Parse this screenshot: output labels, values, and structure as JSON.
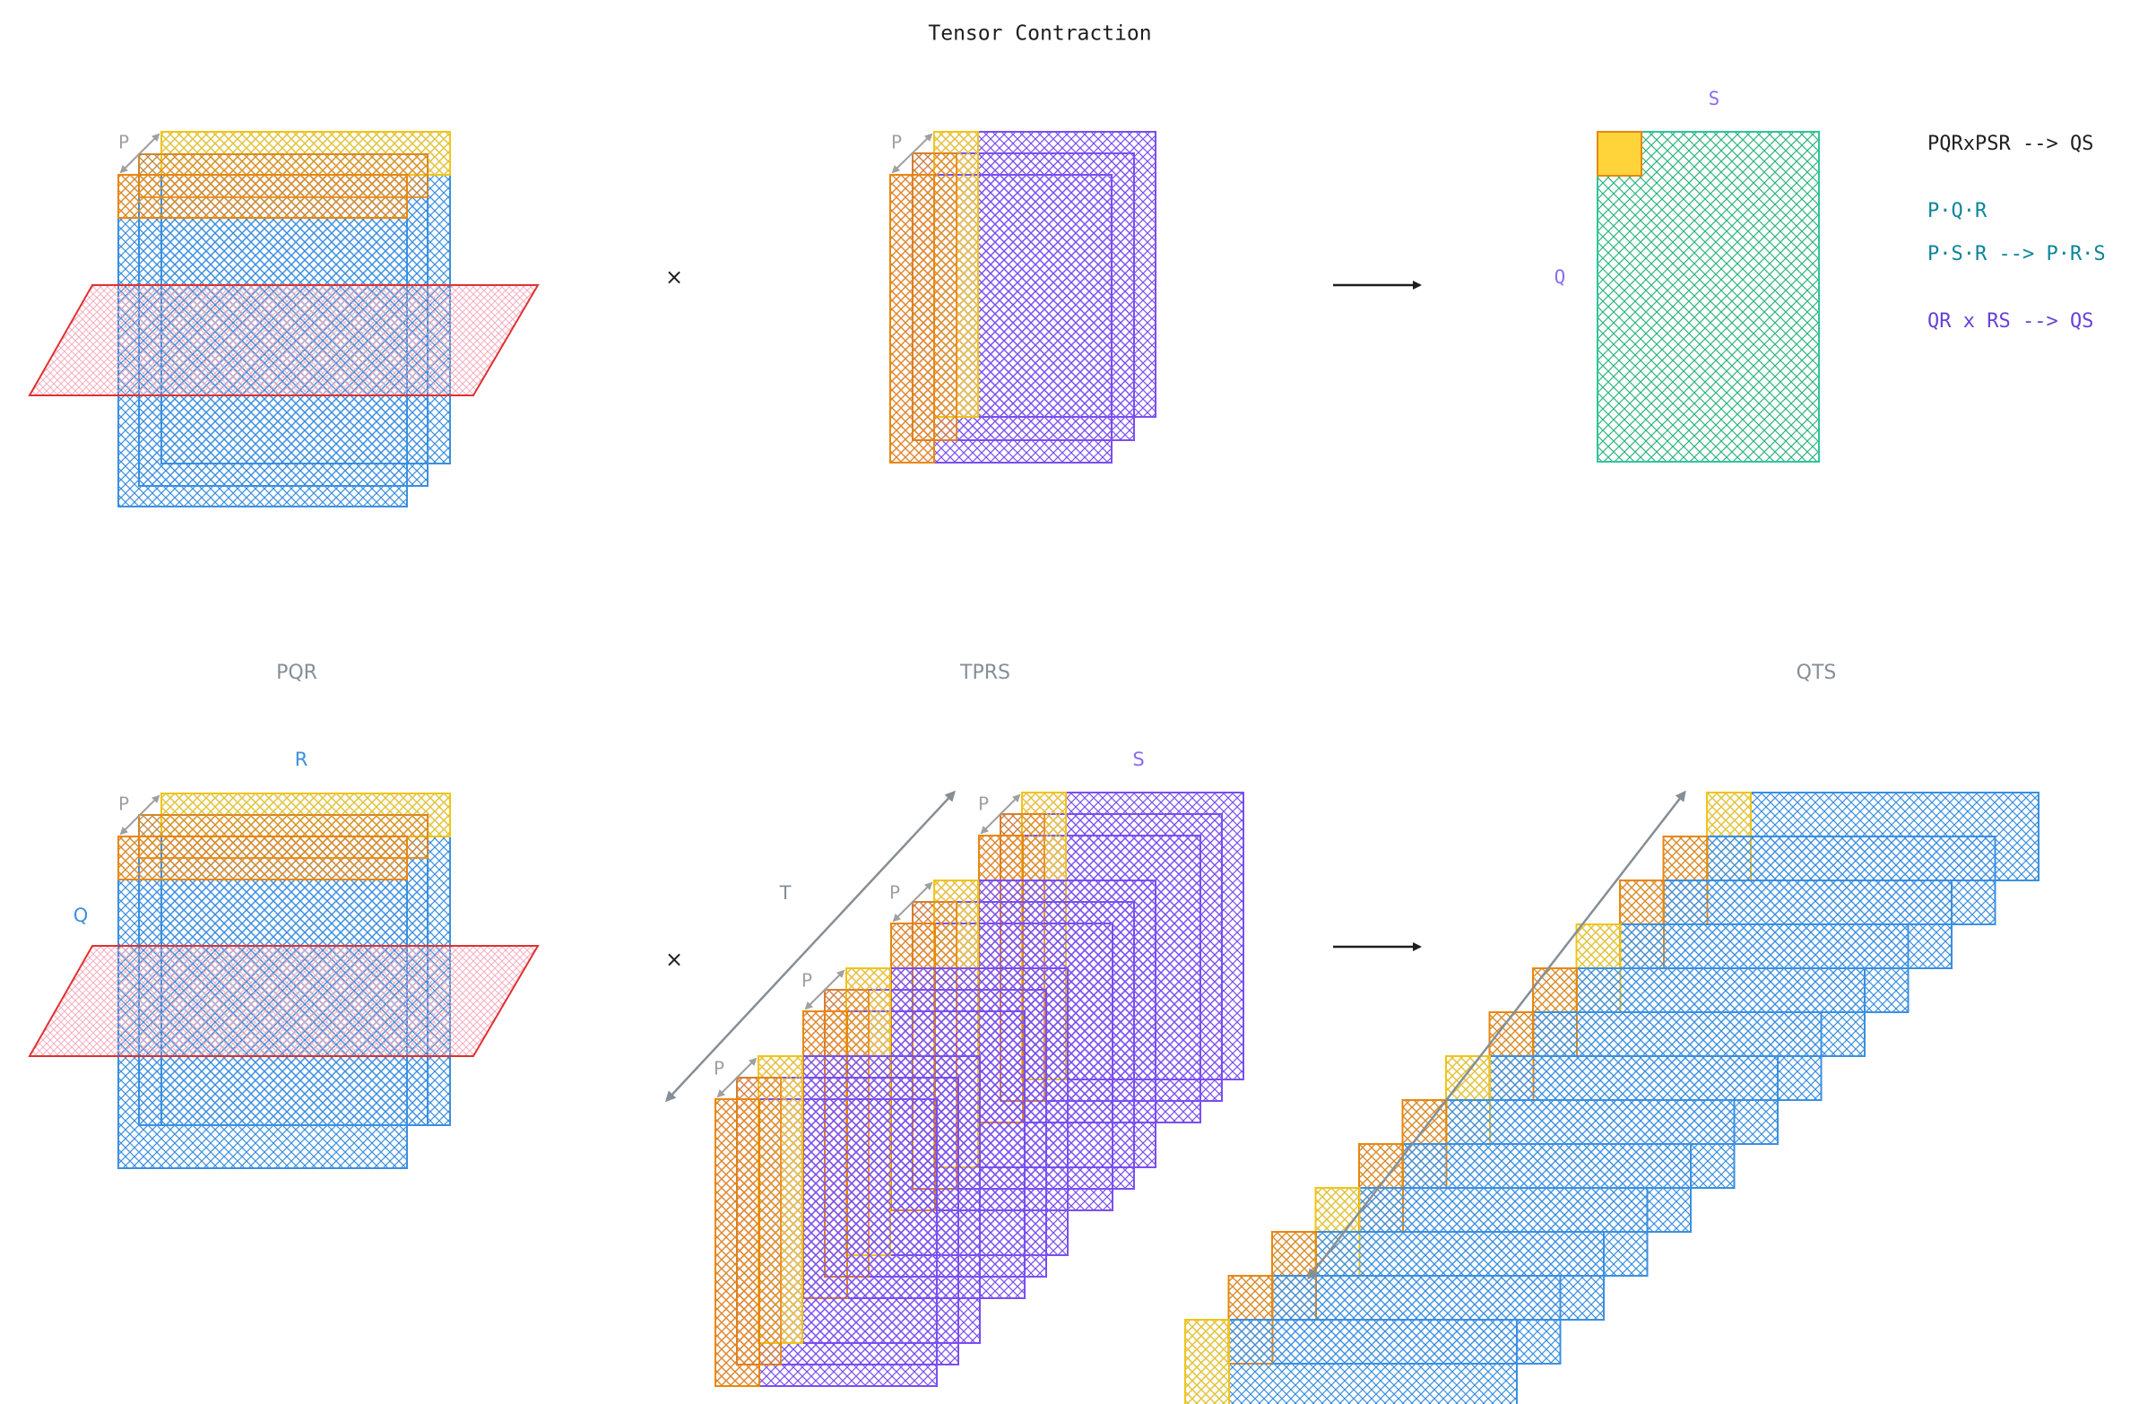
{
  "title": "Tensor Contraction",
  "colors": {
    "blue": "#3b8fe0",
    "yellow": "#f0c419",
    "orange": "#e8870e",
    "purple": "#7a4ff0",
    "teal": "#2fc49a",
    "red": "#e03131",
    "pink": "#f4a6b8",
    "gray": "#868e96",
    "black": "#1e1e1e",
    "formula_teal": "#0c8599",
    "formula_purple": "#6741d9"
  },
  "icons": [
    "times-sign",
    "right-arrow",
    "double-headed-arrow"
  ],
  "top_row": {
    "left": {
      "axis_p": "P"
    },
    "multiply": "×",
    "middle": {
      "axis_p": "P"
    },
    "result": {
      "axis_s": "S",
      "axis_q": "Q"
    }
  },
  "formulas": {
    "line1": "PQRxPSR --> QS",
    "line2": "P·Q·R",
    "line3": "P·S·R --> P·R·S",
    "line4": "QR x RS --> QS"
  },
  "bottom_row": {
    "pqr": {
      "title": "PQR",
      "axis_r": "R",
      "axis_q": "Q",
      "axis_p": "P"
    },
    "multiply": "×",
    "tprs": {
      "title": "TPRS",
      "axis_s": "S",
      "axis_t": "T",
      "axis_p": [
        "P",
        "P",
        "P",
        "P"
      ]
    },
    "qts": {
      "title": "QTS"
    }
  }
}
